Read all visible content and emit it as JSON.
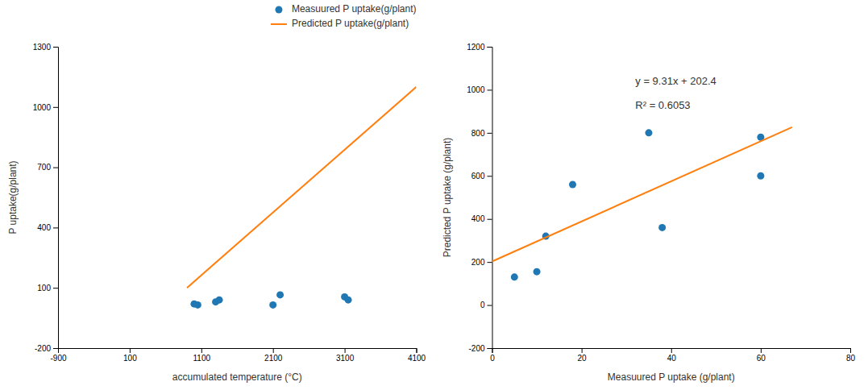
{
  "chart_data": [
    {
      "type": "scatter",
      "x_label": "accumulated temperature (°C)",
      "y_label": "P uptake(g/plant)",
      "xlim": [
        -900,
        4100
      ],
      "ylim": [
        -200,
        1300
      ],
      "xticks": [
        -900,
        100,
        1100,
        2100,
        3100,
        4100
      ],
      "yticks": [
        -200,
        100,
        400,
        700,
        1000,
        1300
      ],
      "legend": "upper right",
      "series": [
        {
          "name": "Measuured P uptake(g/plant)",
          "type": "scatter",
          "x": [
            1000,
            1050,
            1300,
            1350,
            2100,
            2200,
            3100,
            3150
          ],
          "values": [
            20,
            15,
            30,
            40,
            15,
            65,
            55,
            40
          ]
        },
        {
          "name": "Predicted P uptake(g/plant)",
          "type": "line",
          "x": [
            900,
            4100
          ],
          "values": [
            100,
            1100
          ]
        }
      ]
    },
    {
      "type": "scatter",
      "x_label": "Measuured P uptake (g/plant)",
      "y_label": "Predicted P uptake (g/plant)",
      "xlim": [
        0,
        80
      ],
      "ylim": [
        -200,
        1200
      ],
      "xticks": [
        0,
        20,
        40,
        60,
        80
      ],
      "yticks": [
        -200,
        0,
        200,
        400,
        600,
        800,
        1000,
        1200
      ],
      "annotations": [
        "y = 9.31x + 202.4",
        "R² = 0.6053"
      ],
      "series": [
        {
          "type": "scatter",
          "x": [
            5,
            10,
            12,
            18,
            35,
            38,
            60,
            60
          ],
          "values": [
            130,
            155,
            320,
            560,
            800,
            360,
            780,
            600
          ]
        },
        {
          "type": "line",
          "x": [
            0,
            67
          ],
          "values": [
            202.4,
            826.17
          ]
        }
      ]
    }
  ]
}
